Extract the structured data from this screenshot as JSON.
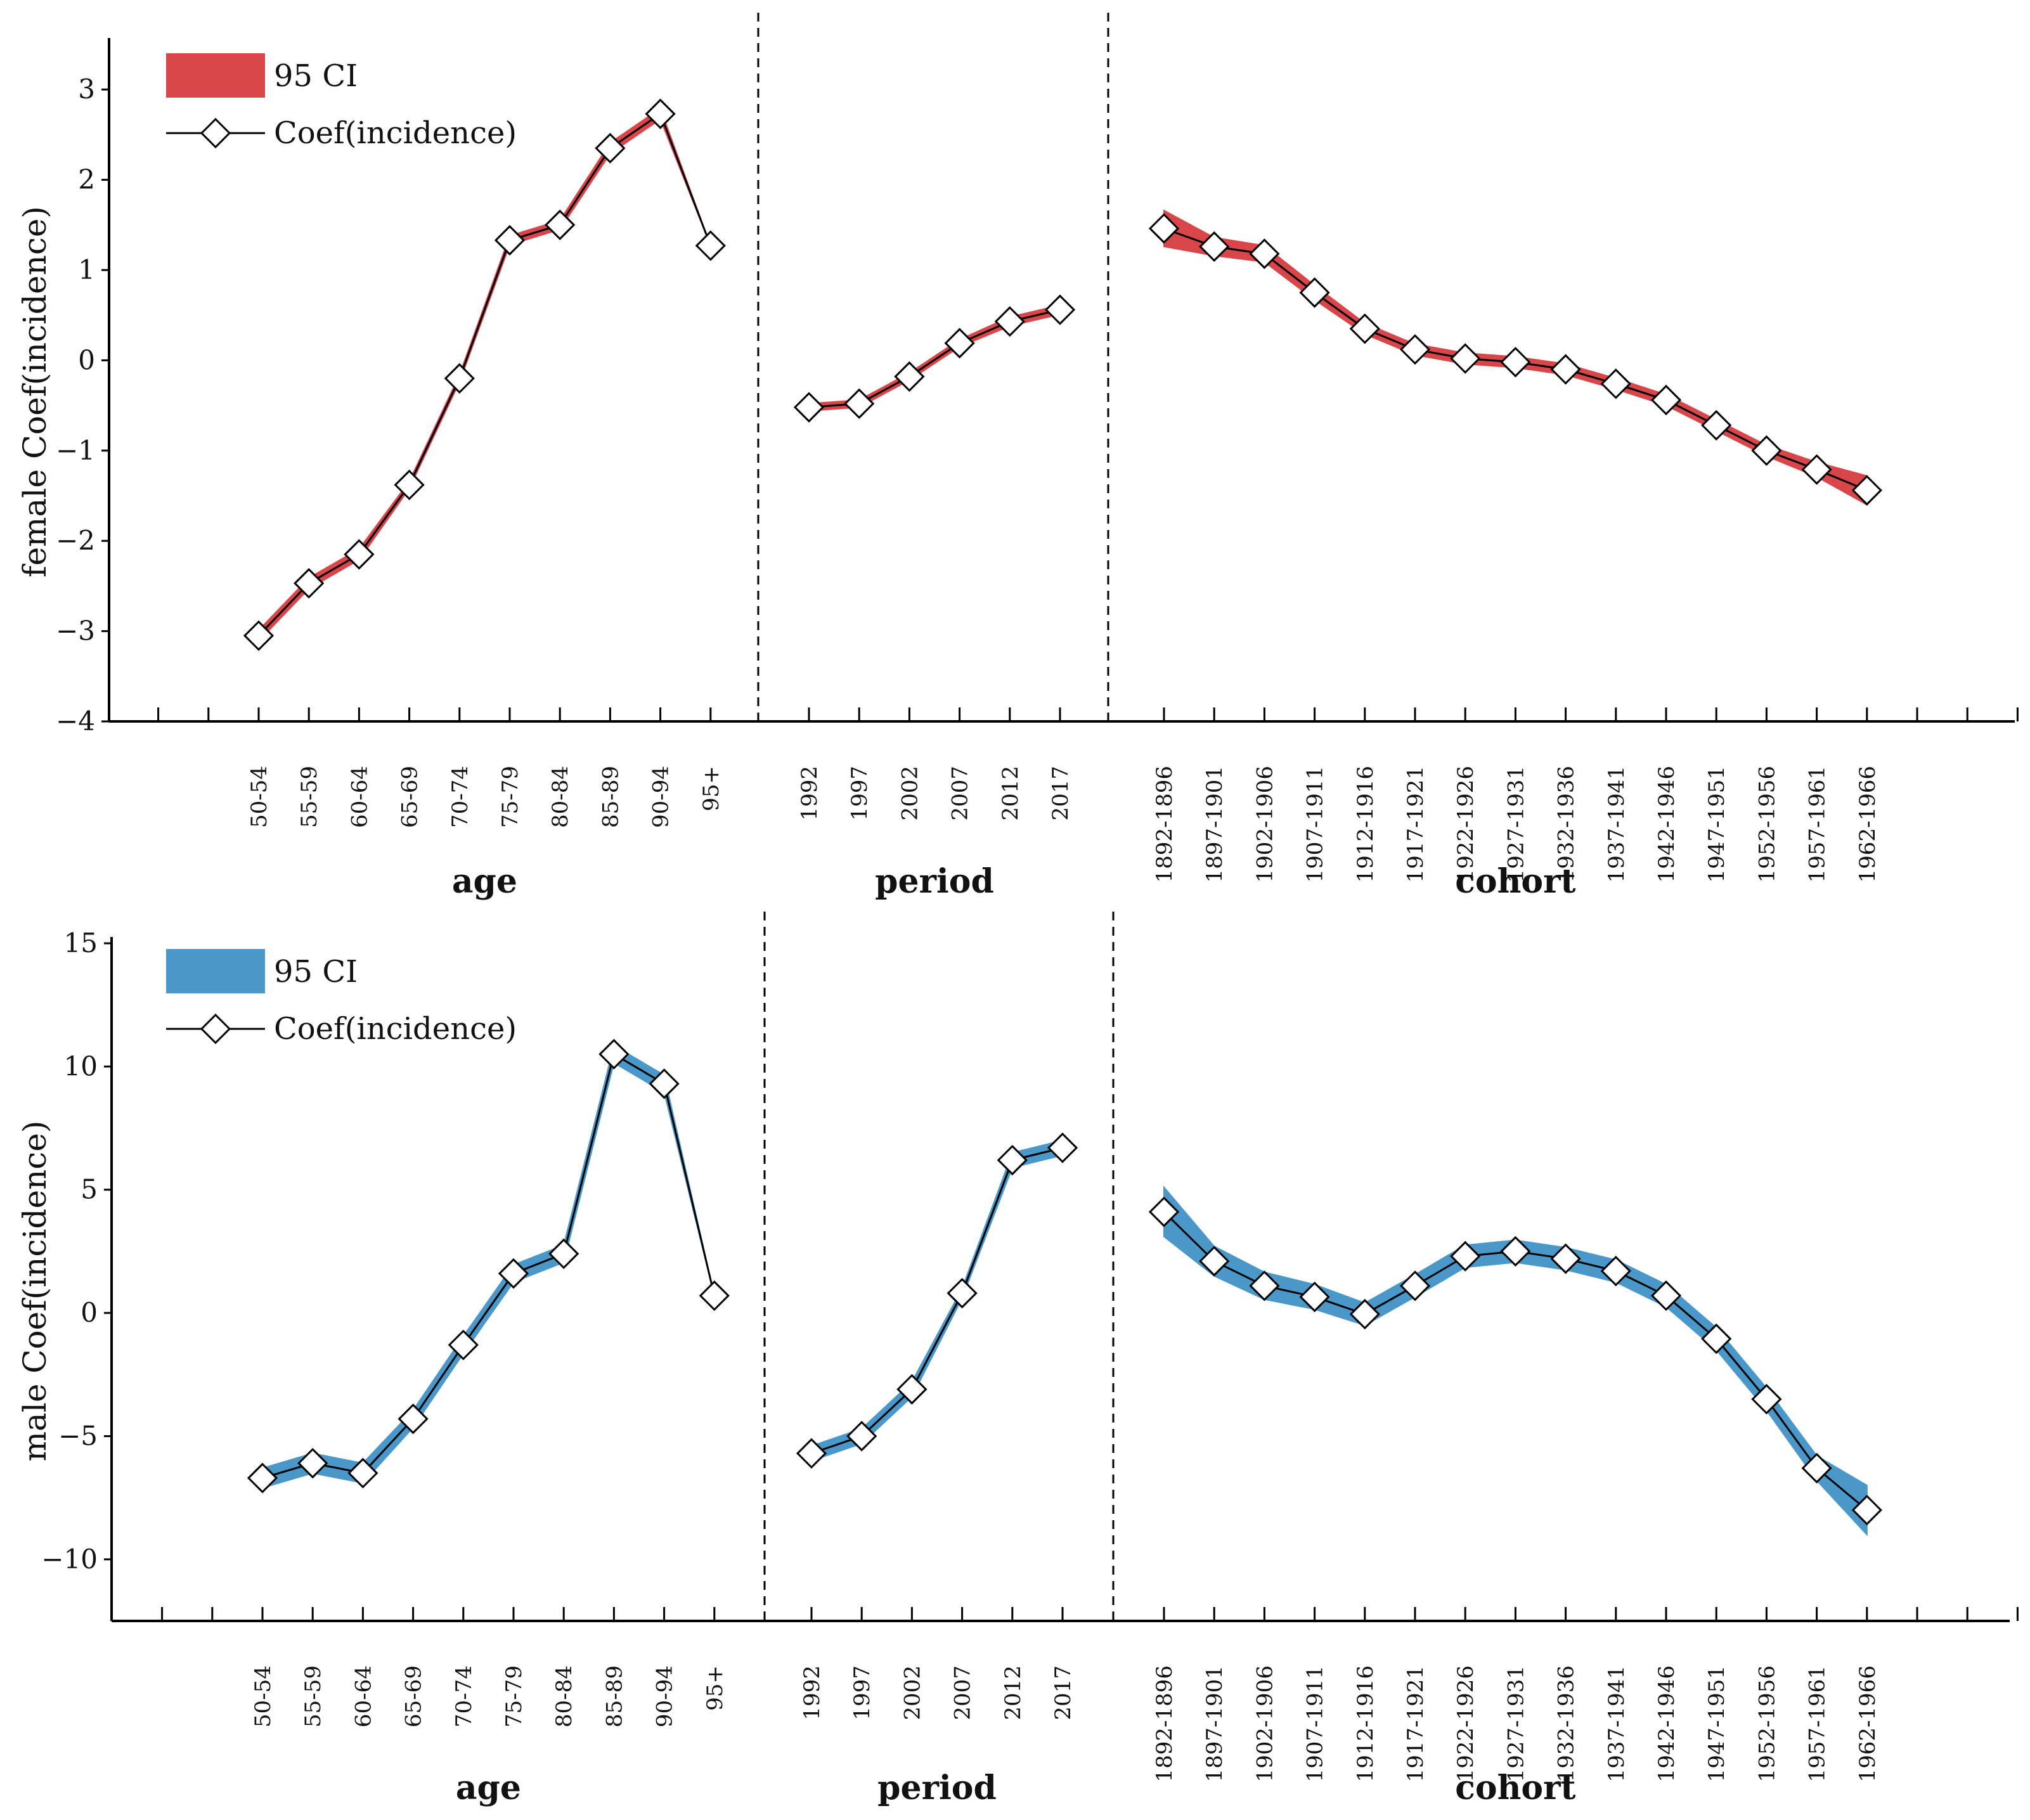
{
  "chart_data": [
    {
      "type": "line",
      "panel": "female",
      "ylabel": "female Coef(incidence)",
      "ylim": [
        -4,
        3.5
      ],
      "yticks": [
        "3",
        "2",
        "1",
        "0",
        "−1",
        "−2",
        "−3",
        "−4"
      ],
      "ytick_values": [
        3,
        2,
        1,
        0,
        -1,
        -2,
        -3,
        -4
      ],
      "legend": {
        "ci_label": "95 CI",
        "line_label": "Coef(incidence)",
        "position": "top-left"
      },
      "ci_color": "#d9464a",
      "groups": [
        {
          "label": "age",
          "categories": [
            "50-54",
            "55-59",
            "60-64",
            "65-69",
            "70-74",
            "75-79",
            "80-84",
            "85-89",
            "90-94",
            "95+"
          ],
          "values": [
            -3.05,
            -2.47,
            -2.15,
            -1.38,
            -0.2,
            1.33,
            1.5,
            2.35,
            2.73,
            1.27
          ],
          "ci_half": [
            0.06,
            0.06,
            0.06,
            0.04,
            0.04,
            0.05,
            0.05,
            0.06,
            0.06,
            0.0
          ]
        },
        {
          "label": "period",
          "categories": [
            "1992",
            "1997",
            "2002",
            "2007",
            "2012",
            "2017"
          ],
          "values": [
            -0.52,
            -0.48,
            -0.18,
            0.19,
            0.43,
            0.56
          ],
          "ci_half": [
            0.04,
            0.04,
            0.04,
            0.04,
            0.05,
            0.05
          ]
        },
        {
          "label": "cohort",
          "categories": [
            "1892-1896",
            "1897-1901",
            "1902-1906",
            "1907-1911",
            "1912-1916",
            "1917-1921",
            "1922-1926",
            "1927-1931",
            "1932-1936",
            "1937-1941",
            "1942-1946",
            "1947-1951",
            "1952-1956",
            "1957-1961",
            "1962-1966"
          ],
          "values": [
            1.46,
            1.26,
            1.18,
            0.75,
            0.35,
            0.12,
            0.02,
            -0.02,
            -0.1,
            -0.26,
            -0.44,
            -0.72,
            -1.0,
            -1.21,
            -1.44
          ],
          "ci_half": [
            0.2,
            0.1,
            0.09,
            0.08,
            0.06,
            0.06,
            0.06,
            0.06,
            0.06,
            0.06,
            0.06,
            0.06,
            0.06,
            0.08,
            0.16
          ]
        }
      ]
    },
    {
      "type": "line",
      "panel": "male",
      "ylabel": "male Coef(incidence)",
      "ylim": [
        -12.5,
        15
      ],
      "yticks": [
        "15",
        "10",
        "5",
        "0",
        "−5",
        "−10"
      ],
      "ytick_values": [
        15,
        10,
        5,
        0,
        -5,
        -10
      ],
      "legend": {
        "ci_label": "95 CI",
        "line_label": "Coef(incidence)",
        "position": "top-left"
      },
      "ci_color": "#4a98c9",
      "groups": [
        {
          "label": "age",
          "categories": [
            "50-54",
            "55-59",
            "60-64",
            "65-69",
            "70-74",
            "75-79",
            "80-84",
            "85-89",
            "90-94",
            "95+"
          ],
          "values": [
            -6.7,
            -6.1,
            -6.5,
            -4.3,
            -1.3,
            1.6,
            2.4,
            10.5,
            9.3,
            0.7
          ],
          "ci_half": [
            0.4,
            0.4,
            0.4,
            0.35,
            0.35,
            0.35,
            0.35,
            0.35,
            0.35,
            0.0
          ]
        },
        {
          "label": "period",
          "categories": [
            "1992",
            "1997",
            "2002",
            "2007",
            "2012",
            "2017"
          ],
          "values": [
            -5.7,
            -5.0,
            -3.1,
            0.8,
            6.2,
            6.7
          ],
          "ci_half": [
            0.3,
            0.3,
            0.3,
            0.2,
            0.3,
            0.3
          ]
        },
        {
          "label": "cohort",
          "categories": [
            "1892-1896",
            "1897-1901",
            "1902-1906",
            "1907-1911",
            "1912-1916",
            "1917-1921",
            "1922-1926",
            "1927-1931",
            "1932-1936",
            "1937-1941",
            "1942-1946",
            "1947-1951",
            "1952-1956",
            "1957-1961",
            "1962-1966"
          ],
          "values": [
            4.1,
            2.1,
            1.1,
            0.65,
            -0.05,
            1.1,
            2.3,
            2.5,
            2.2,
            1.7,
            0.7,
            -1.05,
            -3.5,
            -6.3,
            -8.0
          ],
          "ci_half": [
            1.0,
            0.6,
            0.55,
            0.5,
            0.45,
            0.45,
            0.45,
            0.45,
            0.45,
            0.45,
            0.45,
            0.45,
            0.45,
            0.5,
            1.0
          ]
        }
      ]
    }
  ]
}
